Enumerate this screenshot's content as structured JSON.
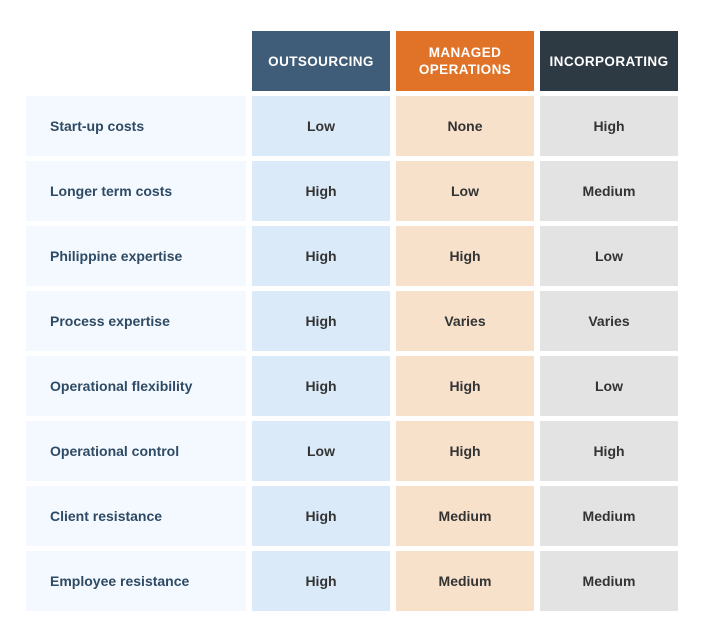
{
  "chart_data": {
    "type": "table",
    "columns": [
      {
        "label": "OUTSOURCING",
        "header_color": "#3f5d78",
        "cell_color": "#daeaf9"
      },
      {
        "label": "MANAGED\nOPERATIONS",
        "header_color": "#e07328",
        "cell_color": "#f7e1cb"
      },
      {
        "label": "INCORPORATING",
        "header_color": "#2e3a43",
        "cell_color": "#e3e3e3"
      }
    ],
    "rows": [
      {
        "label": "Start-up costs",
        "values": [
          "Low",
          "None",
          "High"
        ]
      },
      {
        "label": "Longer term costs",
        "values": [
          "High",
          "Low",
          "Medium"
        ]
      },
      {
        "label": "Philippine expertise",
        "values": [
          "High",
          "High",
          "Low"
        ]
      },
      {
        "label": "Process expertise",
        "values": [
          "High",
          "Varies",
          "Varies"
        ]
      },
      {
        "label": "Operational flexibility",
        "values": [
          "High",
          "High",
          "Low"
        ]
      },
      {
        "label": "Operational control",
        "values": [
          "Low",
          "High",
          "High"
        ]
      },
      {
        "label": "Client resistance",
        "values": [
          "High",
          "Medium",
          "Medium"
        ]
      },
      {
        "label": "Employee resistance",
        "values": [
          "High",
          "Medium",
          "Medium"
        ]
      }
    ]
  }
}
